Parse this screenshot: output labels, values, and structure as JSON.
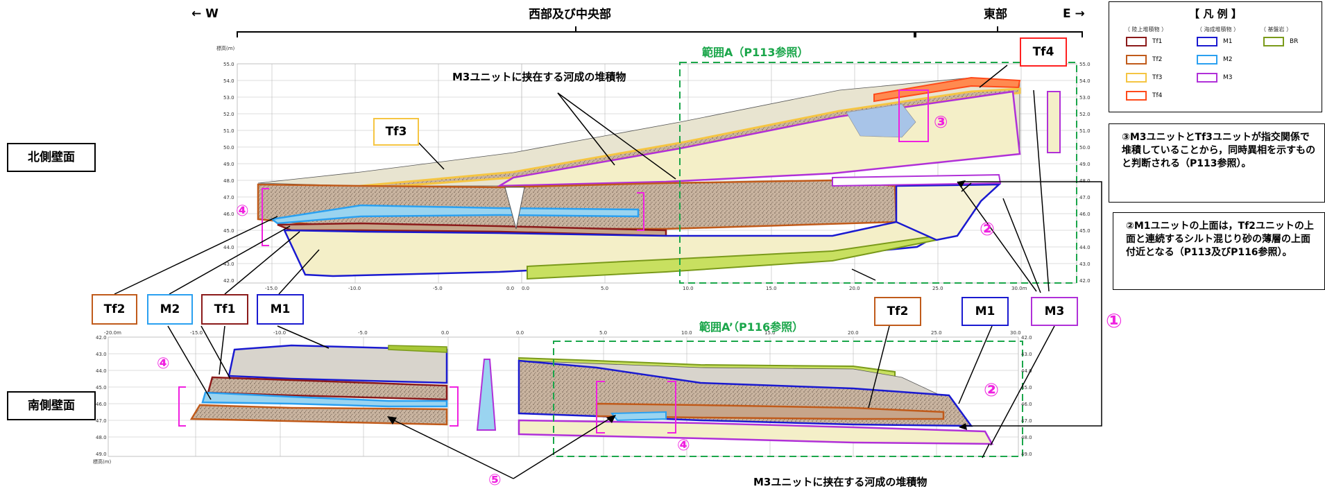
{
  "header": {
    "west_label": "← W",
    "east_label": "E →",
    "west_central": "西部及び中央部",
    "east": "東部"
  },
  "walls": {
    "north": "北側壁面",
    "south": "南側壁面"
  },
  "ranges": {
    "a": "範囲A（P113参照）",
    "a_prime": "範囲A’（P116参照）"
  },
  "annotations": {
    "m3_fluvial_top": "M3ユニットに挟在する河成の堆積物",
    "m3_fluvial_bottom": "M3ユニットに挟在する河成の堆積物"
  },
  "tags": {
    "tf3": "Tf3",
    "tf4": "Tf4",
    "tf2_left": "Tf2",
    "m2": "M2",
    "tf1": "Tf1",
    "m1_left": "M1",
    "tf2_right": "Tf2",
    "m1_right": "M1",
    "m3": "M3"
  },
  "markers": {
    "c1": "①",
    "c2_top": "②",
    "c2_bottom": "②",
    "c3": "③",
    "c4_top": "④",
    "c4_bottom_left": "④",
    "c4_bottom_mid": "④",
    "c5": "⑤"
  },
  "notes": {
    "note3": "③M3ユニットとTf3ユニットが指交関係で堆積していることから，同時異相を示すものと判断される（P113参照）。",
    "note2": "②M1ユニットの上面は，Tf2ユニットの上面と連続するシルト混じり砂の薄層の上面付近となる（P113及びP116参照）。"
  },
  "legend": {
    "title": "【 凡 例 】",
    "groups": {
      "terrestrial": "（ 陸上堆積物 ）",
      "marine": "（ 海成堆積物 ）",
      "bedrock": "（ 基盤岩 ）"
    },
    "items": [
      {
        "label": "Tf1",
        "color": "#8b1a1a"
      },
      {
        "label": "Tf2",
        "color": "#c05a1a"
      },
      {
        "label": "Tf3",
        "color": "#f5c542"
      },
      {
        "label": "Tf4",
        "color": "#ff4a1a"
      },
      {
        "label": "M1",
        "color": "#1a1ad0"
      },
      {
        "label": "M2",
        "color": "#2aa0f0"
      },
      {
        "label": "M3",
        "color": "#b030d8"
      },
      {
        "label": "BR",
        "color": "#7a9a1a"
      }
    ]
  },
  "axes": {
    "north": {
      "elev_label": "標高(m)",
      "y_ticks": [
        "55.0",
        "54.0",
        "53.0",
        "52.0",
        "51.0",
        "50.0",
        "49.0",
        "48.0",
        "47.0",
        "46.0",
        "45.0",
        "44.0",
        "43.0",
        "42.0"
      ],
      "x_ticks": [
        "-15.0",
        "-10.0",
        "-5.0",
        "0.0",
        "0.0",
        "5.0",
        "10.0",
        "15.0",
        "20.0",
        "25.0",
        "30.0m"
      ]
    },
    "south": {
      "elev_label": "標高(m)",
      "y_ticks": [
        "42.0",
        "43.0",
        "44.0",
        "45.0",
        "46.0",
        "47.0",
        "48.0",
        "49.0"
      ],
      "x_ticks": [
        "-20.0m",
        "-15.0",
        "-10.0",
        "-5.0",
        "0.0",
        "0.0",
        "5.0",
        "10.0",
        "15.0",
        "20.0",
        "25.0",
        "30.0"
      ]
    }
  },
  "colors": {
    "range_green": "#1aa64a",
    "magenta": "#f020e0",
    "tf1": "#8b1a1a",
    "tf2": "#c05a1a",
    "tf3": "#f5c542",
    "tf4": "#ff4a1a",
    "m1": "#1a1ad0",
    "m2": "#2aa0f0",
    "m3": "#b030d8",
    "br": "#7a9a1a"
  }
}
